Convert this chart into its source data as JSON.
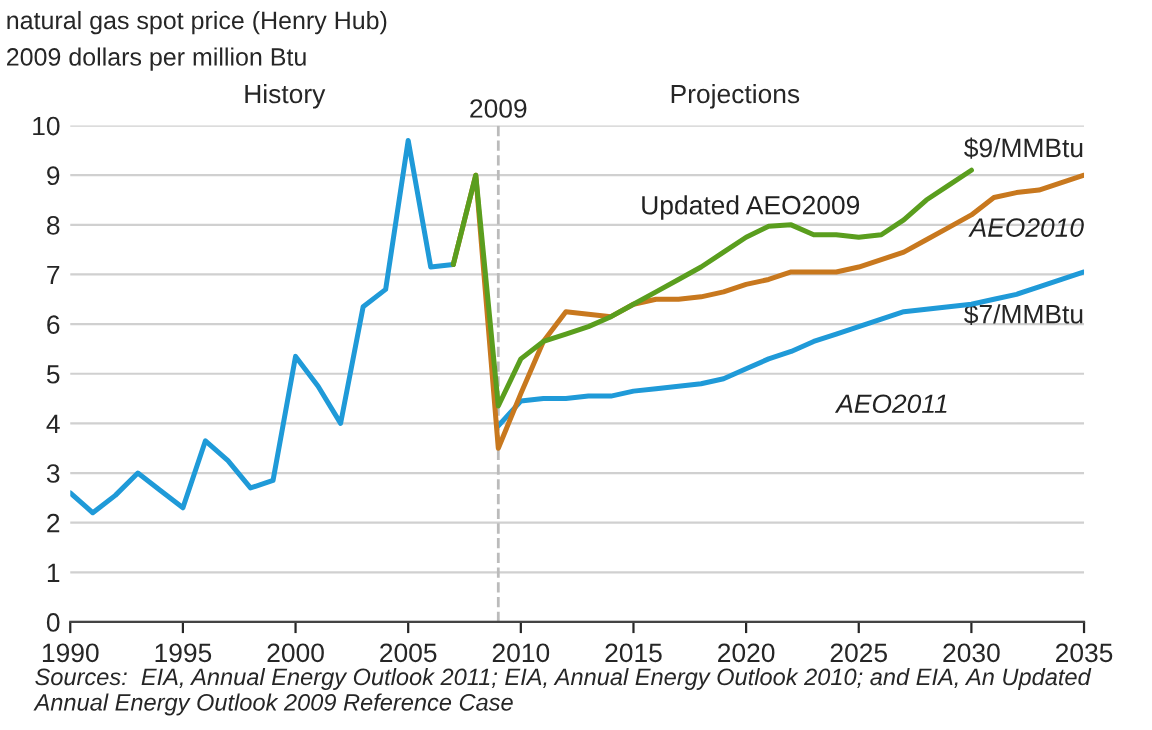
{
  "chart_data": {
    "type": "line",
    "title": "natural gas spot price (Henry Hub)",
    "ylabel": "2009 dollars per million Btu",
    "xlim": [
      1990,
      2035
    ],
    "xticks": [
      1990,
      1995,
      2000,
      2005,
      2010,
      2015,
      2020,
      2025,
      2030,
      2035
    ],
    "ylim": [
      0,
      10
    ],
    "yticks": [
      0,
      1,
      2,
      3,
      4,
      5,
      6,
      7,
      8,
      9,
      10
    ],
    "grid": "y",
    "legend": false,
    "marker": "none",
    "line_style": "solid",
    "series": [
      {
        "color": "#1f9ad8",
        "x": [
          1990,
          1991,
          1992,
          1993,
          1994,
          1995,
          1996,
          1997,
          1998,
          1999,
          2000,
          2001,
          2002,
          2003,
          2004,
          2005,
          2006,
          2007
        ],
        "values": [
          2.6,
          2.2,
          2.55,
          3.0,
          2.65,
          2.3,
          3.65,
          3.25,
          2.7,
          2.85,
          5.35,
          4.75,
          4.0,
          6.35,
          6.7,
          9.7,
          7.15,
          7.2
        ]
      },
      {
        "name": "AEO2011",
        "color": "#1f9ad8",
        "x": [
          2009,
          2010,
          2011,
          2012,
          2013,
          2014,
          2015,
          2016,
          2017,
          2018,
          2019,
          2020,
          2021,
          2022,
          2023,
          2024,
          2025,
          2026,
          2027,
          2028,
          2029,
          2030,
          2031,
          2032,
          2033,
          2034,
          2035
        ],
        "values": [
          3.95,
          4.45,
          4.5,
          4.5,
          4.55,
          4.55,
          4.65,
          4.7,
          4.75,
          4.8,
          4.9,
          5.1,
          5.3,
          5.45,
          5.65,
          5.8,
          5.95,
          6.1,
          6.25,
          6.3,
          6.35,
          6.4,
          6.5,
          6.6,
          6.75,
          6.9,
          7.05
        ]
      },
      {
        "name": "AEO2010",
        "color": "#c8781e",
        "x": [
          2007,
          2008,
          2009,
          2010,
          2011,
          2012,
          2013,
          2014,
          2015,
          2016,
          2017,
          2018,
          2019,
          2020,
          2021,
          2022,
          2023,
          2024,
          2025,
          2026,
          2027,
          2028,
          2029,
          2030,
          2031,
          2032,
          2033,
          2034,
          2035
        ],
        "values": [
          7.2,
          9.0,
          3.5,
          4.6,
          5.65,
          6.25,
          6.2,
          6.15,
          6.4,
          6.5,
          6.5,
          6.55,
          6.65,
          6.8,
          6.9,
          7.05,
          7.05,
          7.05,
          7.15,
          7.3,
          7.45,
          7.7,
          7.95,
          8.2,
          8.55,
          8.65,
          8.7,
          8.85,
          9.0
        ]
      },
      {
        "name": "Updated AEO2009",
        "color": "#5a9e1e",
        "x": [
          2007,
          2008,
          2009,
          2010,
          2011,
          2012,
          2013,
          2014,
          2015,
          2016,
          2017,
          2018,
          2019,
          2020,
          2021,
          2022,
          2023,
          2024,
          2025,
          2026,
          2027,
          2028,
          2029,
          2030
        ],
        "values": [
          7.2,
          9.0,
          4.35,
          5.3,
          5.65,
          5.8,
          5.95,
          6.15,
          6.4,
          6.65,
          6.9,
          7.15,
          7.45,
          7.75,
          7.97,
          8.0,
          7.8,
          7.8,
          7.75,
          7.8,
          8.1,
          8.5,
          8.8,
          9.1
        ]
      }
    ],
    "ref_lines": [
      {
        "axis": "x",
        "value": 2009,
        "label": "2009",
        "color": "#bbbbbb",
        "line_style": "dashed"
      }
    ],
    "annotations": [
      "History",
      "Projections",
      {
        "text": "$9/MMBtu",
        "x": 2035,
        "y": 9.0
      },
      {
        "text": "$7/MMBtu",
        "x": 2035,
        "y": 7.05
      },
      "Sources:  EIA, Annual Energy Outlook 2011; EIA, Annual Energy Outlook 2010; and EIA, An Updated Annual Energy Outlook 2009 Reference Case"
    ]
  }
}
